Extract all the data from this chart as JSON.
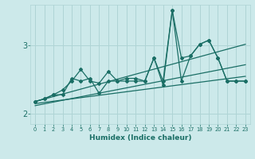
{
  "xlabel": "Humidex (Indice chaleur)",
  "ylabel": "",
  "background_color": "#cce9ea",
  "grid_color": "#afd4d5",
  "line_color": "#1a6e65",
  "xlim": [
    -0.5,
    23.5
  ],
  "ylim": [
    1.85,
    3.6
  ],
  "yticks": [
    2,
    3
  ],
  "xticks": [
    0,
    1,
    2,
    3,
    4,
    5,
    6,
    7,
    8,
    9,
    10,
    11,
    12,
    13,
    14,
    15,
    16,
    17,
    18,
    19,
    20,
    21,
    22,
    23
  ],
  "series1_x": [
    0,
    1,
    2,
    3,
    4,
    5,
    6,
    7,
    8,
    9,
    10,
    11,
    12,
    13,
    14,
    15,
    16,
    17,
    18,
    19,
    20,
    21,
    22,
    23
  ],
  "series1_y": [
    2.18,
    2.22,
    2.28,
    2.28,
    2.52,
    2.48,
    2.52,
    2.3,
    2.48,
    2.48,
    2.48,
    2.48,
    2.48,
    2.82,
    2.42,
    3.52,
    2.82,
    2.85,
    3.02,
    3.08,
    2.82,
    2.48,
    2.48,
    2.48
  ],
  "series2_x": [
    0,
    1,
    2,
    3,
    4,
    5,
    6,
    7,
    8,
    9,
    10,
    11,
    12,
    13,
    14,
    15,
    16,
    17,
    18,
    19,
    20,
    21,
    22,
    23
  ],
  "series2_y": [
    2.18,
    2.22,
    2.28,
    2.35,
    2.48,
    2.65,
    2.48,
    2.45,
    2.62,
    2.48,
    2.52,
    2.52,
    2.48,
    2.82,
    2.48,
    3.52,
    2.48,
    2.85,
    3.02,
    3.08,
    2.82,
    2.48,
    2.48,
    2.48
  ],
  "trend1_x": [
    0,
    23
  ],
  "trend1_y": [
    2.18,
    3.02
  ],
  "trend2_x": [
    0,
    23
  ],
  "trend2_y": [
    2.15,
    2.55
  ],
  "trend3_x": [
    0,
    23
  ],
  "trend3_y": [
    2.12,
    2.72
  ]
}
